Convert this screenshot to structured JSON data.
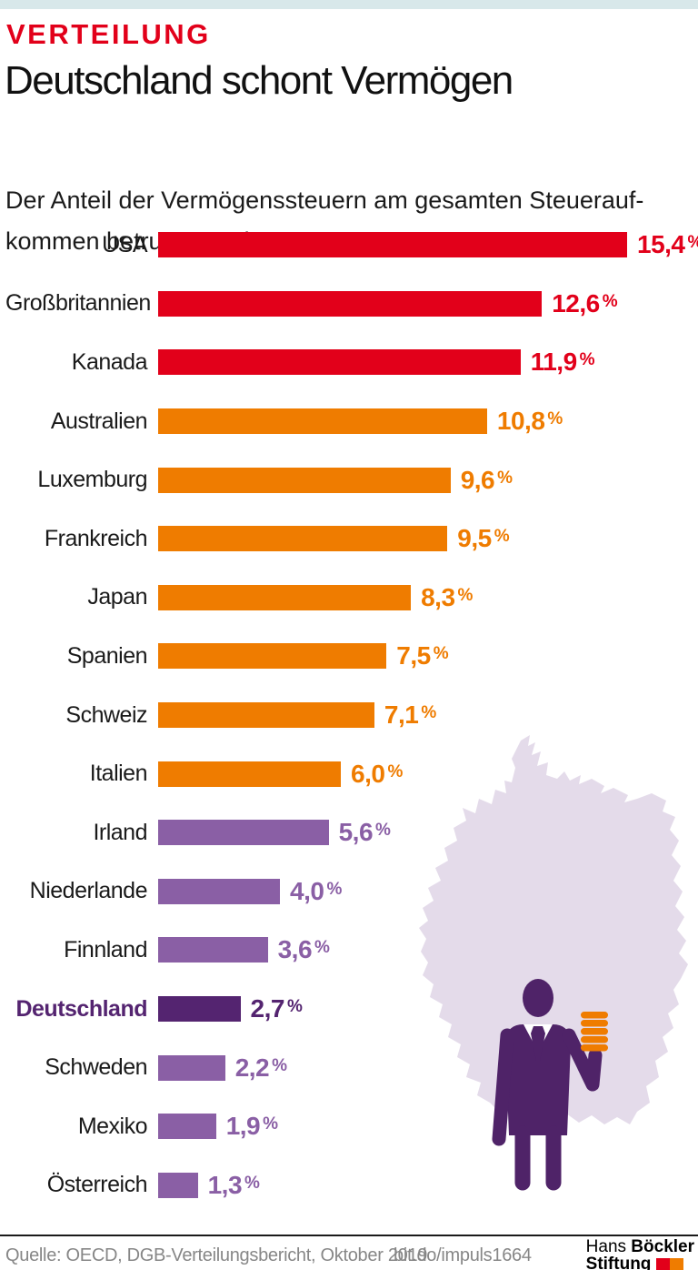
{
  "meta": {
    "accent_strip_color": "#d8e8ea",
    "divider_color": "#1a1a1a"
  },
  "header": {
    "kicker": "VERTEILUNG",
    "title": "Deutschland schont Vermögen",
    "subtitle_line1": "Der Anteil der Vermögenssteuern am gesamten Steuerauf-",
    "subtitle_line2": "kommen betrug 2017 in …"
  },
  "chart_data": {
    "type": "bar",
    "orientation": "horizontal",
    "title": "Deutschland schont Vermögen",
    "xlabel": "",
    "ylabel": "",
    "unit": "%",
    "xlim": [
      0,
      15.4
    ],
    "grid": false,
    "legend": "none",
    "categories": [
      "USA",
      "Großbritannien",
      "Kanada",
      "Australien",
      "Luxemburg",
      "Frankreich",
      "Japan",
      "Spanien",
      "Schweiz",
      "Italien",
      "Irland",
      "Niederlande",
      "Finnland",
      "Deutschland",
      "Schweden",
      "Mexiko",
      "Österreich"
    ],
    "values": [
      15.4,
      12.6,
      11.9,
      10.8,
      9.6,
      9.5,
      8.3,
      7.5,
      7.1,
      6.0,
      5.6,
      4.0,
      3.6,
      2.7,
      2.2,
      1.9,
      1.3
    ],
    "rows": [
      {
        "label": "USA",
        "display": "15,4",
        "value": 15.4,
        "tier": "red",
        "emphasis": false
      },
      {
        "label": "Großbritannien",
        "display": "12,6",
        "value": 12.6,
        "tier": "red",
        "emphasis": false
      },
      {
        "label": "Kanada",
        "display": "11,9",
        "value": 11.9,
        "tier": "red",
        "emphasis": false
      },
      {
        "label": "Australien",
        "display": "10,8",
        "value": 10.8,
        "tier": "orange",
        "emphasis": false
      },
      {
        "label": "Luxemburg",
        "display": "9,6",
        "value": 9.6,
        "tier": "orange",
        "emphasis": false
      },
      {
        "label": "Frankreich",
        "display": "9,5",
        "value": 9.5,
        "tier": "orange",
        "emphasis": false
      },
      {
        "label": "Japan",
        "display": "8,3",
        "value": 8.3,
        "tier": "orange",
        "emphasis": false
      },
      {
        "label": "Spanien",
        "display": "7,5",
        "value": 7.5,
        "tier": "orange",
        "emphasis": false
      },
      {
        "label": "Schweiz",
        "display": "7,1",
        "value": 7.1,
        "tier": "orange",
        "emphasis": false
      },
      {
        "label": "Italien",
        "display": "6,0",
        "value": 6.0,
        "tier": "orange",
        "emphasis": false
      },
      {
        "label": "Irland",
        "display": "5,6",
        "value": 5.6,
        "tier": "purple",
        "emphasis": false
      },
      {
        "label": "Niederlande",
        "display": "4,0",
        "value": 4.0,
        "tier": "purple",
        "emphasis": false
      },
      {
        "label": "Finnland",
        "display": "3,6",
        "value": 3.6,
        "tier": "purple",
        "emphasis": false
      },
      {
        "label": "Deutschland",
        "display": "2,7",
        "value": 2.7,
        "tier": "dark",
        "emphasis": true
      },
      {
        "label": "Schweden",
        "display": "2,2",
        "value": 2.2,
        "tier": "purple",
        "emphasis": false
      },
      {
        "label": "Mexiko",
        "display": "1,9",
        "value": 1.9,
        "tier": "purple",
        "emphasis": false
      },
      {
        "label": "Österreich",
        "display": "1,3",
        "value": 1.3,
        "tier": "purple",
        "emphasis": false
      }
    ],
    "colors": {
      "red": "#e2001a",
      "orange": "#ef7c00",
      "purple": "#8a5fa5",
      "dark": "#542470"
    }
  },
  "illustration": {
    "map": "germany-silhouette",
    "map_color": "#e4dbea",
    "figure": "businessman-holding-coin-stack",
    "figure_color": "#4f2368",
    "coin_color": "#ef7c00",
    "coin_count": 5
  },
  "footer": {
    "source": "Quelle: OECD, DGB-Verteilungsbericht, Oktober 2019",
    "link": "bit.do/impuls1664",
    "logo_line1_regular": "Hans",
    "logo_line1_bold": "Böckler",
    "logo_line2_bold": "Stiftung",
    "logo_square_colors": [
      "#e2001a",
      "#ef7c00"
    ]
  }
}
